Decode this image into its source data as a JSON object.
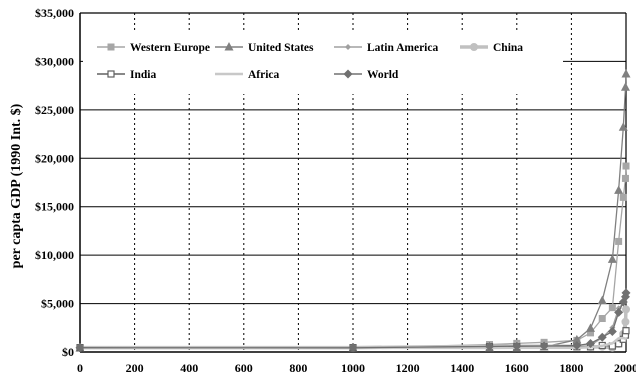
{
  "chart_data": {
    "type": "line",
    "xlabel": "",
    "ylabel": "per capta GDP (1990 Int. $)",
    "xlim": [
      0,
      2000
    ],
    "ylim": [
      0,
      35000
    ],
    "x_ticks": [
      "0",
      "200",
      "400",
      "600",
      "800",
      "1000",
      "1200",
      "1400",
      "1600",
      "1800",
      "2000"
    ],
    "y_ticks": [
      "$0",
      "$5,000",
      "$10,000",
      "$15,000",
      "$20,000",
      "$25,000",
      "$30,000",
      "$35,000"
    ],
    "grid": {
      "horizontal": "solid",
      "vertical": "dotted"
    },
    "legend_position": "top-left, inside",
    "series": [
      {
        "name": "Western Europe",
        "color": "#a6a6a6",
        "marker": "square",
        "points": [
          [
            0,
            450
          ],
          [
            1000,
            400
          ],
          [
            1500,
            771
          ],
          [
            1600,
            890
          ],
          [
            1700,
            998
          ],
          [
            1820,
            1202
          ],
          [
            1870,
            1974
          ],
          [
            1913,
            3457
          ],
          [
            1950,
            4578
          ],
          [
            1973,
            11416
          ],
          [
            1990,
            15966
          ],
          [
            1998,
            17921
          ],
          [
            2003,
            19200
          ]
        ]
      },
      {
        "name": "United States",
        "color": "#808080",
        "marker": "triangle",
        "points": [
          [
            0,
            400
          ],
          [
            1000,
            400
          ],
          [
            1500,
            400
          ],
          [
            1600,
            400
          ],
          [
            1700,
            527
          ],
          [
            1820,
            1257
          ],
          [
            1870,
            2445
          ],
          [
            1913,
            5301
          ],
          [
            1950,
            9561
          ],
          [
            1973,
            16689
          ],
          [
            1990,
            23201
          ],
          [
            1998,
            27331
          ],
          [
            2003,
            28700
          ]
        ]
      },
      {
        "name": "Latin America",
        "color": "#a0a0a0",
        "marker": "small-diamond",
        "points": [
          [
            0,
            400
          ],
          [
            1000,
            400
          ],
          [
            1500,
            416
          ],
          [
            1600,
            438
          ],
          [
            1700,
            527
          ],
          [
            1820,
            692
          ],
          [
            1870,
            681
          ],
          [
            1913,
            1481
          ],
          [
            1950,
            2506
          ],
          [
            1973,
            4504
          ],
          [
            1990,
            5053
          ],
          [
            1998,
            5795
          ],
          [
            2003,
            5800
          ]
        ]
      },
      {
        "name": "China",
        "color": "#c0c0c0",
        "marker": "circle",
        "points": [
          [
            0,
            450
          ],
          [
            1000,
            450
          ],
          [
            1500,
            600
          ],
          [
            1600,
            600
          ],
          [
            1700,
            600
          ],
          [
            1820,
            600
          ],
          [
            1870,
            530
          ],
          [
            1913,
            552
          ],
          [
            1950,
            439
          ],
          [
            1973,
            839
          ],
          [
            1990,
            1871
          ],
          [
            1998,
            3117
          ],
          [
            2003,
            4400
          ]
        ]
      },
      {
        "name": "India",
        "color": "#606060",
        "marker": "open-square",
        "points": [
          [
            0,
            450
          ],
          [
            1000,
            450
          ],
          [
            1500,
            550
          ],
          [
            1600,
            550
          ],
          [
            1700,
            550
          ],
          [
            1820,
            533
          ],
          [
            1870,
            533
          ],
          [
            1913,
            673
          ],
          [
            1950,
            619
          ],
          [
            1973,
            853
          ],
          [
            1990,
            1309
          ],
          [
            1998,
            1746
          ],
          [
            2003,
            2200
          ]
        ]
      },
      {
        "name": "Africa",
        "color": "#c8c8c8",
        "marker": "none",
        "points": [
          [
            0,
            430
          ],
          [
            1000,
            425
          ],
          [
            1500,
            414
          ],
          [
            1600,
            422
          ],
          [
            1700,
            421
          ],
          [
            1820,
            420
          ],
          [
            1870,
            500
          ],
          [
            1913,
            637
          ],
          [
            1950,
            894
          ],
          [
            1973,
            1410
          ],
          [
            1990,
            1444
          ],
          [
            1998,
            1368
          ],
          [
            2003,
            1500
          ]
        ]
      },
      {
        "name": "World",
        "color": "#707070",
        "marker": "diamond",
        "points": [
          [
            0,
            445
          ],
          [
            1000,
            436
          ],
          [
            1500,
            566
          ],
          [
            1600,
            595
          ],
          [
            1700,
            615
          ],
          [
            1820,
            667
          ],
          [
            1870,
            873
          ],
          [
            1913,
            1526
          ],
          [
            1950,
            2113
          ],
          [
            1973,
            4091
          ],
          [
            1990,
            5157
          ],
          [
            1998,
            5709
          ],
          [
            2003,
            6100
          ]
        ]
      }
    ]
  }
}
